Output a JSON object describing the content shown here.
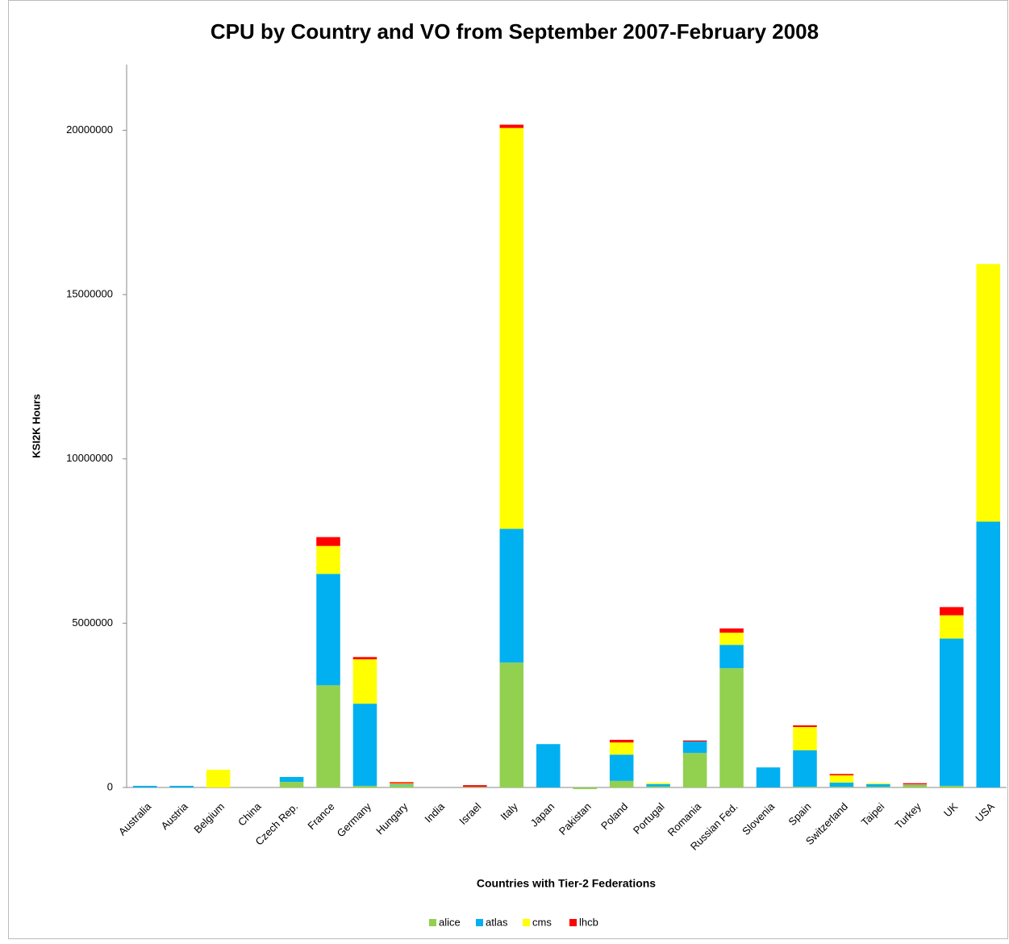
{
  "chart_data": {
    "type": "stacked_bar",
    "title": "CPU by Country and VO from September 2007-February 2008",
    "x_label": "Countries with Tier-2 Federations",
    "y_label": "KSI2K Hours",
    "categories": [
      "Australia",
      "Austria",
      "Belgium",
      "China",
      "Czech Rep.",
      "France",
      "Germany",
      "Hungary",
      "India",
      "Israel",
      "Italy",
      "Japan",
      "Pakistan",
      "Poland",
      "Portugal",
      "Romania",
      "Russian Fed.",
      "Slovenia",
      "Spain",
      "Switzerland",
      "Taipei",
      "Turkey",
      "UK",
      "USA"
    ],
    "series": [
      {
        "name": "alice",
        "color": "#92d050",
        "values": [
          0,
          0,
          0,
          0,
          170000,
          3110000,
          50000,
          80000,
          0,
          20000,
          3800000,
          0,
          -50000,
          200000,
          30000,
          1050000,
          3630000,
          0,
          20000,
          20000,
          20000,
          50000,
          50000,
          0
        ]
      },
      {
        "name": "atlas",
        "color": "#00b0f0",
        "values": [
          50000,
          50000,
          0,
          0,
          150000,
          3390000,
          2500000,
          20000,
          0,
          0,
          4070000,
          1320000,
          0,
          800000,
          70000,
          350000,
          710000,
          610000,
          1110000,
          130000,
          80000,
          20000,
          4480000,
          8090000
        ]
      },
      {
        "name": "cms",
        "color": "#ffff00",
        "values": [
          0,
          0,
          540000,
          0,
          0,
          850000,
          1350000,
          20000,
          0,
          0,
          12200000,
          0,
          0,
          370000,
          40000,
          0,
          370000,
          0,
          710000,
          220000,
          30000,
          20000,
          710000,
          7840000
        ]
      },
      {
        "name": "lhcb",
        "color": "#ff0000",
        "values": [
          0,
          0,
          0,
          0,
          0,
          270000,
          70000,
          40000,
          0,
          50000,
          100000,
          0,
          0,
          80000,
          0,
          30000,
          130000,
          0,
          50000,
          40000,
          0,
          40000,
          250000,
          0
        ]
      }
    ],
    "ylim": [
      0,
      22000000
    ],
    "yticks": [
      0,
      5000000,
      10000000,
      15000000,
      20000000
    ],
    "grid": false,
    "legend": "bottom"
  }
}
